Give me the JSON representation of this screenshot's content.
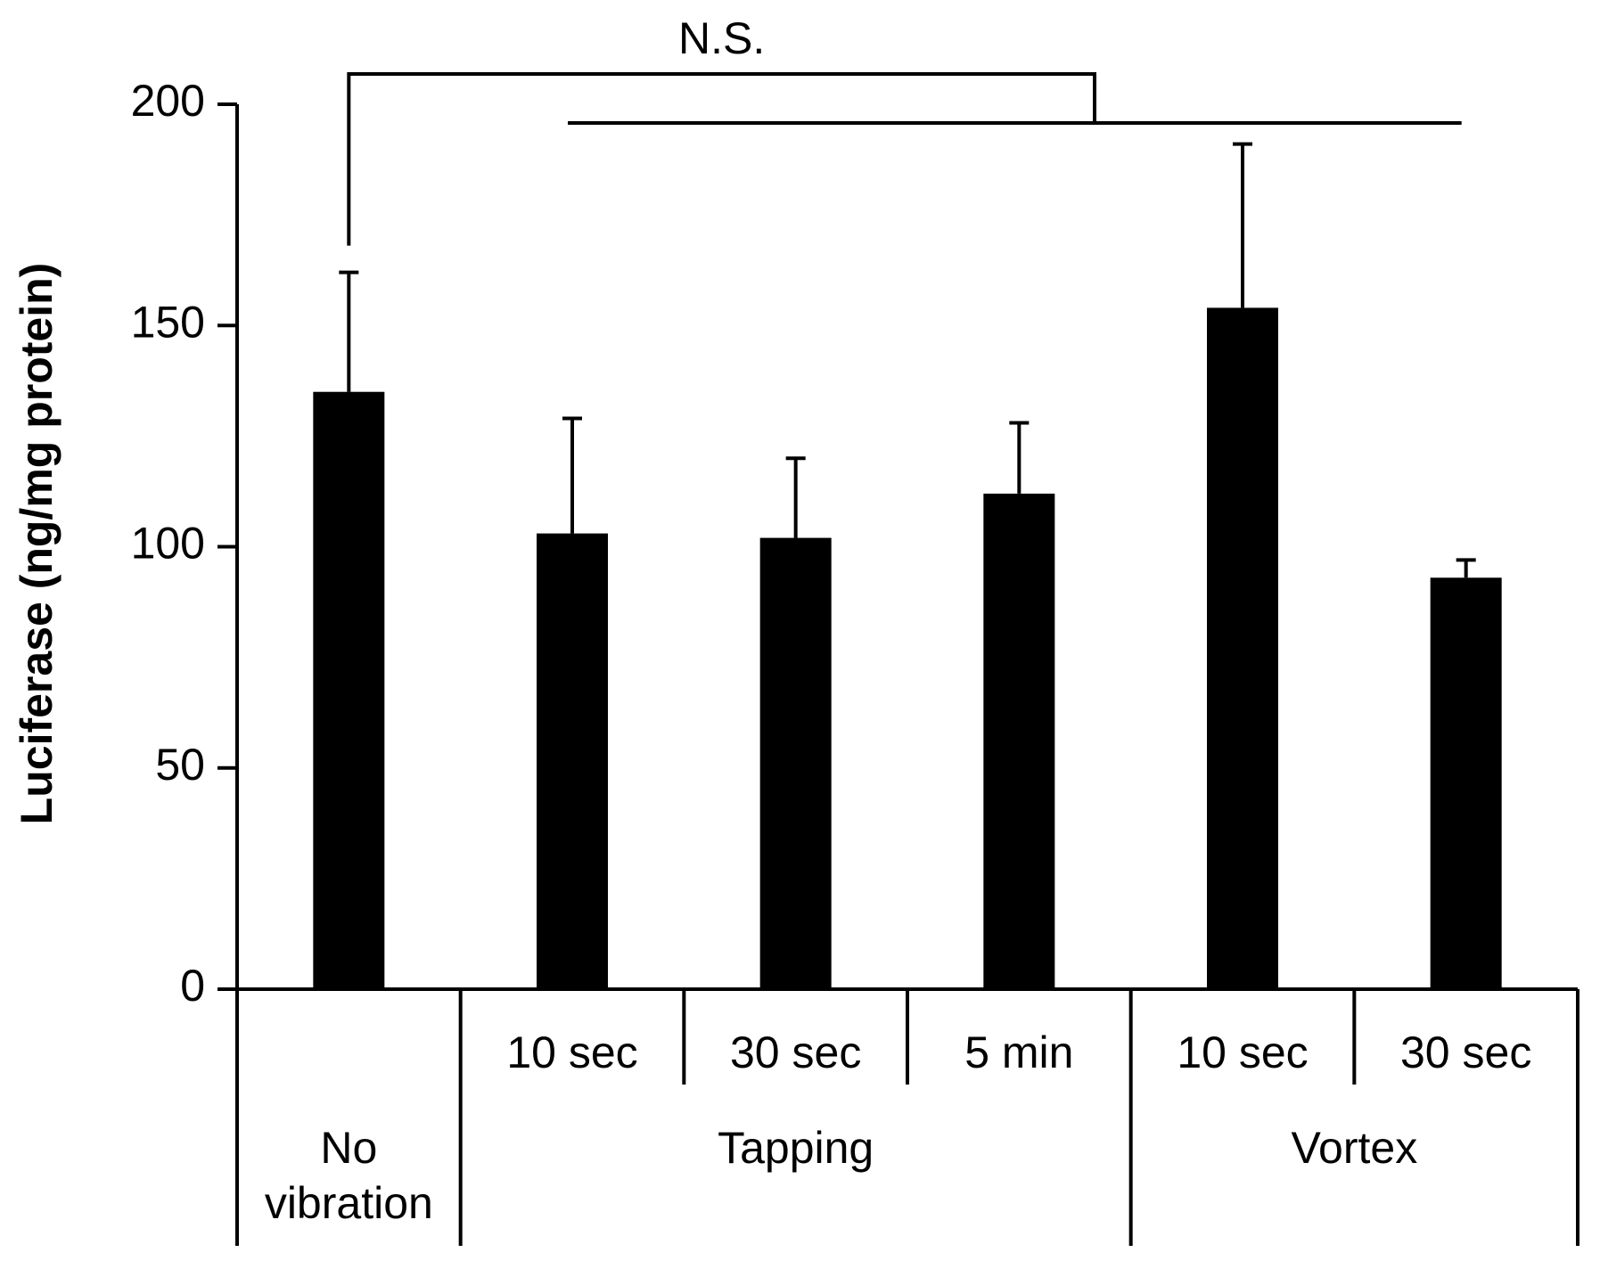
{
  "chart_data": {
    "type": "bar",
    "title": "",
    "xlabel": "",
    "ylabel": "Luciferase (ng/mg protein)",
    "ylim": [
      0,
      200
    ],
    "yticks": [
      0,
      50,
      100,
      150,
      200
    ],
    "grid": false,
    "bar_color": "#000000",
    "categories": [
      {
        "group": "No vibration",
        "label": ""
      },
      {
        "group": "Tapping",
        "label": "10 sec"
      },
      {
        "group": "Tapping",
        "label": "30 sec"
      },
      {
        "group": "Tapping",
        "label": "5 min"
      },
      {
        "group": "Vortex",
        "label": "10 sec"
      },
      {
        "group": "Vortex",
        "label": "30 sec"
      }
    ],
    "groups": [
      {
        "name": "No vibration",
        "lines": [
          "No",
          "vibration"
        ],
        "count": 1
      },
      {
        "name": "Tapping",
        "lines": [
          "Tapping"
        ],
        "count": 3
      },
      {
        "name": "Vortex",
        "lines": [
          "Vortex"
        ],
        "count": 2
      }
    ],
    "values": [
      135,
      103,
      102,
      112,
      154,
      93
    ],
    "errors": [
      27,
      26,
      18,
      16,
      37,
      4
    ],
    "annotations": [
      {
        "text": "N.S.",
        "from": "No vibration",
        "to": "all vibration groups"
      }
    ]
  }
}
